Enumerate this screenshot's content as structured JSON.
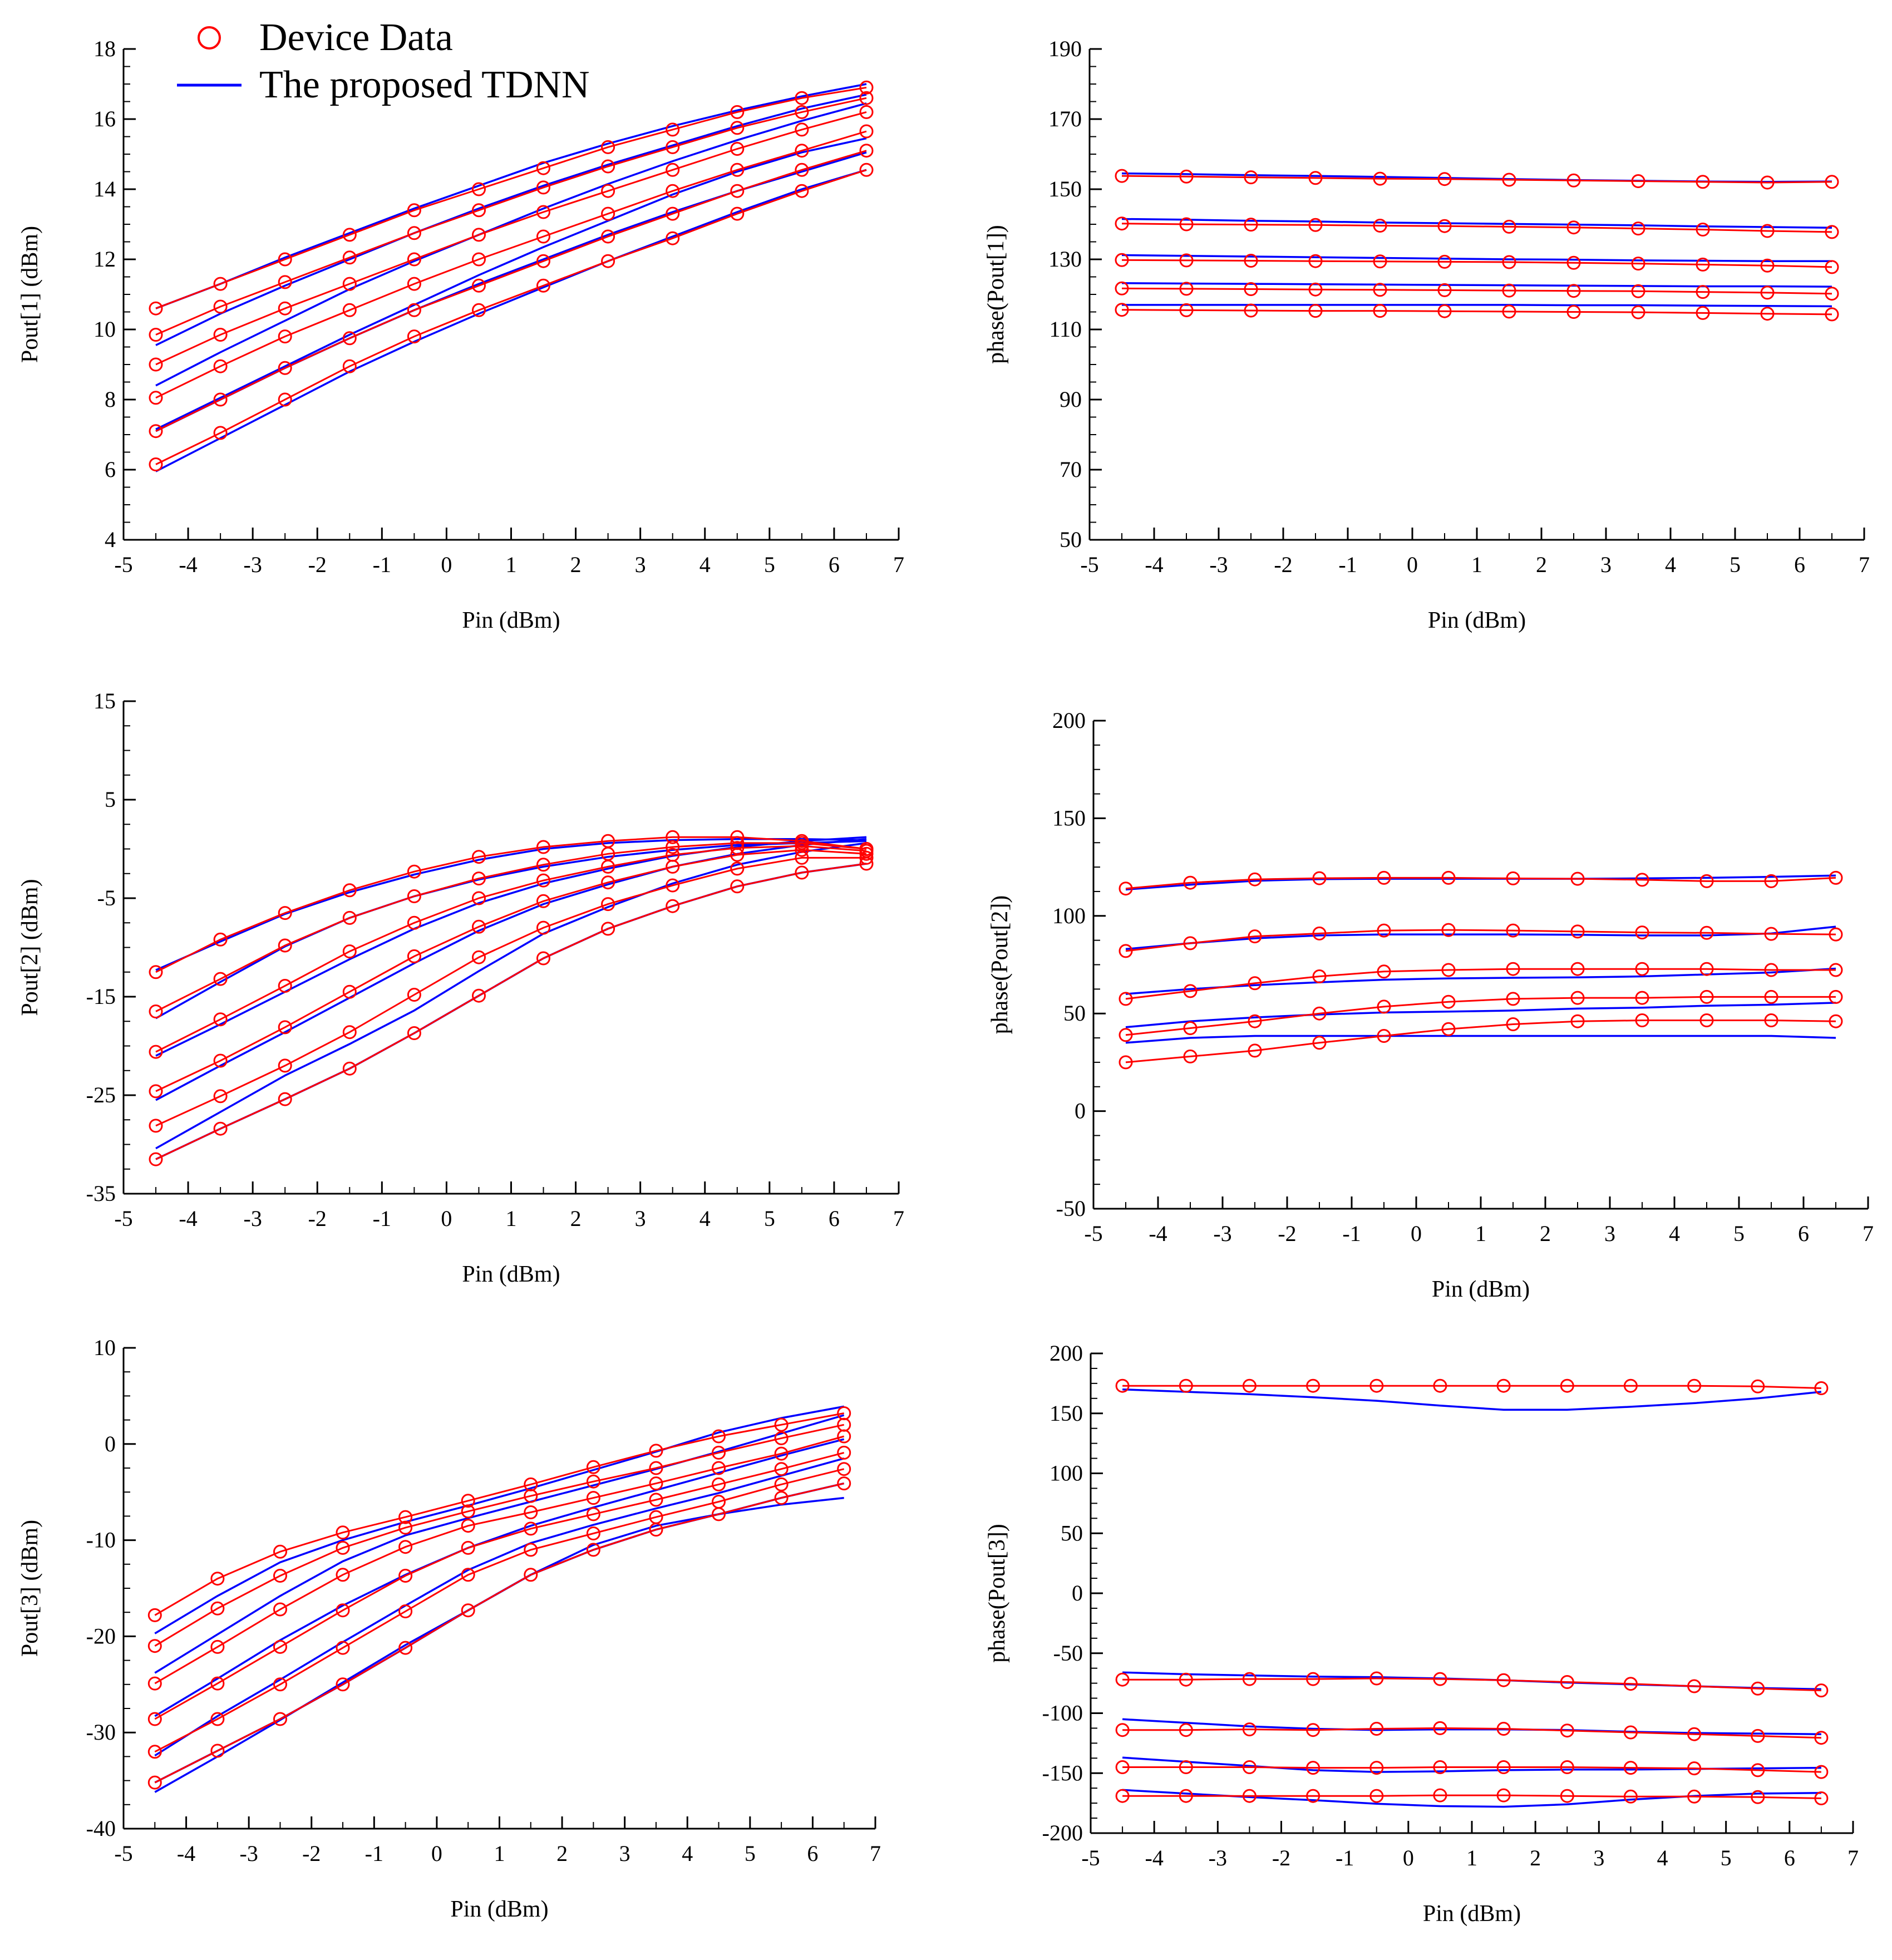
{
  "legend": {
    "entries": [
      {
        "label": "Device Data",
        "marker": "circle",
        "color": "#ff0000"
      },
      {
        "label": "The proposed TDNN",
        "marker": "line",
        "color": "#0000ff"
      }
    ]
  },
  "colors": {
    "device": "#ff0000",
    "model": "#0000ff",
    "axis": "#000000"
  },
  "chart_data": [
    {
      "type": "line",
      "xlabel": "Pin (dBm)",
      "ylabel": "Pout[1] (dBm)",
      "xlim": [
        -5,
        7
      ],
      "ylim": [
        4,
        18
      ],
      "xticks": [
        -5,
        -4,
        -3,
        -2,
        -1,
        0,
        1,
        2,
        3,
        4,
        5,
        6,
        7
      ],
      "yticks": [
        4,
        6,
        8,
        10,
        12,
        14,
        16,
        18
      ],
      "x": [
        -4.5,
        -3.5,
        -2.5,
        -1.5,
        -0.5,
        0.5,
        1.5,
        2.5,
        3.5,
        4.5,
        5.5,
        6.5
      ],
      "device_series": [
        [
          10.6,
          11.3,
          12.0,
          12.7,
          13.4,
          14.0,
          14.6,
          15.2,
          15.7,
          16.2,
          16.6,
          16.9
        ],
        [
          9.85,
          10.65,
          11.35,
          12.05,
          12.75,
          13.4,
          14.05,
          14.65,
          15.2,
          15.75,
          16.2,
          16.6
        ],
        [
          9.0,
          9.85,
          10.6,
          11.3,
          12.0,
          12.7,
          13.35,
          13.95,
          14.55,
          15.15,
          15.7,
          16.2
        ],
        [
          8.05,
          8.95,
          9.8,
          10.55,
          11.3,
          12.0,
          12.65,
          13.3,
          13.95,
          14.55,
          15.1,
          15.65
        ],
        [
          7.1,
          8.0,
          8.9,
          9.75,
          10.55,
          11.25,
          11.95,
          12.65,
          13.3,
          13.95,
          14.55,
          15.1
        ],
        [
          6.15,
          7.05,
          8.0,
          8.95,
          9.8,
          10.55,
          11.25,
          11.95,
          12.6,
          13.3,
          13.95,
          14.55
        ]
      ],
      "model_series": [
        [
          10.6,
          11.3,
          12.05,
          12.75,
          13.45,
          14.1,
          14.75,
          15.3,
          15.8,
          16.25,
          16.65,
          17.0
        ],
        [
          9.55,
          10.45,
          11.25,
          12.0,
          12.75,
          13.45,
          14.1,
          14.7,
          15.25,
          15.8,
          16.3,
          16.7
        ],
        [
          8.4,
          9.35,
          10.25,
          11.15,
          11.95,
          12.7,
          13.45,
          14.15,
          14.8,
          15.4,
          15.95,
          16.45
        ],
        [
          7.15,
          8.05,
          8.95,
          9.85,
          10.7,
          11.55,
          12.35,
          13.1,
          13.85,
          14.5,
          15.05,
          15.45
        ],
        [
          7.1,
          8.0,
          8.9,
          9.75,
          10.55,
          11.3,
          12.0,
          12.7,
          13.35,
          13.95,
          14.5,
          15.05
        ],
        [
          5.95,
          6.9,
          7.85,
          8.8,
          9.65,
          10.45,
          11.2,
          11.95,
          12.65,
          13.35,
          14.0,
          14.55
        ]
      ]
    },
    {
      "type": "line",
      "xlabel": "Pin (dBm)",
      "ylabel": "phase(Pout[1])",
      "xlim": [
        -5,
        7
      ],
      "ylim": [
        50,
        190
      ],
      "xticks": [
        -5,
        -4,
        -3,
        -2,
        -1,
        0,
        1,
        2,
        3,
        4,
        5,
        6,
        7
      ],
      "yticks": [
        50,
        70,
        90,
        110,
        130,
        150,
        170,
        190
      ],
      "x": [
        -4.5,
        -3.5,
        -2.5,
        -1.5,
        -0.5,
        0.5,
        1.5,
        2.5,
        3.5,
        4.5,
        5.5,
        6.5
      ],
      "device_series": [
        [
          153.8,
          153.6,
          153.4,
          153.2,
          153.0,
          152.9,
          152.7,
          152.5,
          152.3,
          152.1,
          151.9,
          152.1
        ],
        [
          140.2,
          140.0,
          139.9,
          139.8,
          139.6,
          139.5,
          139.3,
          139.1,
          138.8,
          138.5,
          138.1,
          137.8
        ],
        [
          129.8,
          129.7,
          129.6,
          129.5,
          129.4,
          129.3,
          129.2,
          129.0,
          128.8,
          128.5,
          128.2,
          127.8
        ],
        [
          121.7,
          121.6,
          121.5,
          121.4,
          121.3,
          121.2,
          121.1,
          121.0,
          120.9,
          120.7,
          120.5,
          120.2
        ],
        [
          115.6,
          115.5,
          115.4,
          115.3,
          115.3,
          115.2,
          115.1,
          115.0,
          114.9,
          114.7,
          114.5,
          114.3
        ]
      ],
      "model_series": [
        [
          154.5,
          154.3,
          154.0,
          153.8,
          153.5,
          153.2,
          152.9,
          152.6,
          152.4,
          152.2,
          152.1,
          152.2
        ],
        [
          141.5,
          141.3,
          141.0,
          140.8,
          140.5,
          140.3,
          140.1,
          139.9,
          139.7,
          139.4,
          139.2,
          139.0
        ],
        [
          131.2,
          131.0,
          130.8,
          130.6,
          130.4,
          130.2,
          130.0,
          129.9,
          129.7,
          129.6,
          129.5,
          129.5
        ],
        [
          123.2,
          123.1,
          123.0,
          122.9,
          122.8,
          122.7,
          122.6,
          122.5,
          122.4,
          122.3,
          122.3,
          122.2
        ],
        [
          117.0,
          117.0,
          117.0,
          117.0,
          117.0,
          117.0,
          117.0,
          116.9,
          116.9,
          116.8,
          116.7,
          116.6
        ]
      ]
    },
    {
      "type": "line",
      "xlabel": "Pin (dBm)",
      "ylabel": "Pout[2] (dBm)",
      "xlim": [
        -5,
        7
      ],
      "ylim": [
        -35,
        15
      ],
      "xticks": [
        -5,
        -4,
        -3,
        -2,
        -1,
        0,
        1,
        2,
        3,
        4,
        5,
        6,
        7
      ],
      "yticks": [
        -35,
        -25,
        -15,
        -5,
        5,
        15
      ],
      "x": [
        -4.5,
        -3.5,
        -2.5,
        -1.5,
        -0.5,
        0.5,
        1.5,
        2.5,
        3.5,
        4.5,
        5.5,
        6.5
      ],
      "device_series": [
        [
          -12.5,
          -9.2,
          -6.5,
          -4.2,
          -2.3,
          -0.8,
          0.2,
          0.8,
          1.2,
          1.2,
          0.8,
          0.0
        ],
        [
          -16.5,
          -13.2,
          -9.8,
          -7.0,
          -4.8,
          -3.0,
          -1.6,
          -0.5,
          0.2,
          0.6,
          0.6,
          0.0
        ],
        [
          -20.6,
          -17.3,
          -13.9,
          -10.4,
          -7.5,
          -5.0,
          -3.2,
          -1.8,
          -0.6,
          0.1,
          0.3,
          -0.2
        ],
        [
          -24.6,
          -21.5,
          -18.1,
          -14.5,
          -10.9,
          -7.9,
          -5.3,
          -3.4,
          -1.8,
          -0.6,
          -0.1,
          -0.5
        ],
        [
          -28.1,
          -25.1,
          -22.0,
          -18.6,
          -14.8,
          -11.0,
          -8.0,
          -5.6,
          -3.7,
          -2.0,
          -0.9,
          -0.9
        ],
        [
          -31.5,
          -28.4,
          -25.4,
          -22.3,
          -18.7,
          -14.9,
          -11.1,
          -8.1,
          -5.8,
          -3.8,
          -2.4,
          -1.5
        ]
      ],
      "model_series": [
        [
          -12.3,
          -9.4,
          -6.6,
          -4.4,
          -2.6,
          -1.1,
          0.0,
          0.6,
          0.9,
          1.0,
          1.0,
          0.9
        ],
        [
          -17.2,
          -13.5,
          -9.9,
          -7.0,
          -4.8,
          -3.1,
          -1.8,
          -0.8,
          -0.1,
          0.4,
          0.6,
          0.8
        ],
        [
          -21.0,
          -17.8,
          -14.5,
          -11.2,
          -8.1,
          -5.5,
          -3.5,
          -2.0,
          -0.7,
          0.2,
          0.8,
          1.2
        ],
        [
          -25.5,
          -22.0,
          -18.6,
          -15.1,
          -11.6,
          -8.3,
          -5.6,
          -3.6,
          -1.8,
          -0.5,
          0.4,
          1.0
        ],
        [
          -30.4,
          -26.7,
          -23.0,
          -19.8,
          -16.4,
          -12.4,
          -8.6,
          -5.9,
          -3.5,
          -1.6,
          -0.3,
          0.6
        ],
        [
          -31.5,
          -28.4,
          -25.4,
          -22.3,
          -18.7,
          -14.9,
          -11.1,
          -8.1,
          -5.8,
          -3.8,
          -2.4,
          -1.5
        ]
      ]
    },
    {
      "type": "line",
      "xlabel": "Pin (dBm)",
      "ylabel": "phase(Pout[2])",
      "xlim": [
        -5,
        7
      ],
      "ylim": [
        -50,
        200
      ],
      "xticks": [
        -5,
        -4,
        -3,
        -2,
        -1,
        0,
        1,
        2,
        3,
        4,
        5,
        6,
        7
      ],
      "yticks": [
        -50,
        0,
        50,
        100,
        150,
        200
      ],
      "x": [
        -4.5,
        -3.5,
        -2.5,
        -1.5,
        -0.5,
        0.5,
        1.5,
        2.5,
        3.5,
        4.5,
        5.5,
        6.5
      ],
      "device_series": [
        [
          114.0,
          117.0,
          118.7,
          119.3,
          119.5,
          119.5,
          119.2,
          119.0,
          118.5,
          117.8,
          117.8,
          119.5
        ],
        [
          82.0,
          86.0,
          89.5,
          91.0,
          92.5,
          92.8,
          92.5,
          92.0,
          91.5,
          91.3,
          90.8,
          90.5
        ],
        [
          57.5,
          61.5,
          65.5,
          69.0,
          71.5,
          72.3,
          72.8,
          72.8,
          72.8,
          72.8,
          72.3,
          72.3
        ],
        [
          39.0,
          42.5,
          46.0,
          50.0,
          53.5,
          56.0,
          57.5,
          58.0,
          58.0,
          58.5,
          58.5,
          58.5
        ],
        [
          25.0,
          28.0,
          31.0,
          35.0,
          38.5,
          42.0,
          44.5,
          46.0,
          46.5,
          46.5,
          46.5,
          46.0
        ]
      ],
      "model_series": [
        [
          113.5,
          116.0,
          118.0,
          118.8,
          119.0,
          119.0,
          119.0,
          119.0,
          119.2,
          119.5,
          120.0,
          120.7
        ],
        [
          83.0,
          86.0,
          88.5,
          90.0,
          90.5,
          90.5,
          90.5,
          90.3,
          90.0,
          90.0,
          91.0,
          94.5
        ],
        [
          60.0,
          62.5,
          64.5,
          66.0,
          67.3,
          68.0,
          68.3,
          68.5,
          69.0,
          70.0,
          71.0,
          73.0
        ],
        [
          43.0,
          46.0,
          48.0,
          49.5,
          50.5,
          51.0,
          51.5,
          52.5,
          53.0,
          54.0,
          54.5,
          55.5
        ],
        [
          35.0,
          37.5,
          38.5,
          38.5,
          38.5,
          38.5,
          38.5,
          38.5,
          38.5,
          38.5,
          38.5,
          37.5
        ]
      ]
    },
    {
      "type": "line",
      "xlabel": "Pin (dBm)",
      "ylabel": "Pout[3] (dBm)",
      "xlim": [
        -5,
        7
      ],
      "ylim": [
        -40,
        10
      ],
      "xticks": [
        -5,
        -4,
        -3,
        -2,
        -1,
        0,
        1,
        2,
        3,
        4,
        5,
        6,
        7
      ],
      "yticks": [
        -40,
        -30,
        -20,
        -10,
        0,
        10
      ],
      "x": [
        -4.5,
        -3.5,
        -2.5,
        -1.5,
        -0.5,
        0.5,
        1.5,
        2.5,
        3.5,
        4.5,
        5.5,
        6.5
      ],
      "device_series": [
        [
          -17.8,
          -14.0,
          -11.2,
          -9.2,
          -7.6,
          -5.9,
          -4.2,
          -2.4,
          -0.7,
          0.8,
          2.0,
          3.2
        ],
        [
          -21.0,
          -17.1,
          -13.7,
          -10.8,
          -8.7,
          -7.0,
          -5.4,
          -3.9,
          -2.5,
          -0.9,
          0.6,
          2.0
        ],
        [
          -24.9,
          -21.1,
          -17.2,
          -13.6,
          -10.7,
          -8.5,
          -7.1,
          -5.6,
          -4.1,
          -2.5,
          -1.0,
          0.8
        ],
        [
          -28.6,
          -24.9,
          -21.1,
          -17.3,
          -13.7,
          -10.8,
          -8.8,
          -7.3,
          -5.8,
          -4.2,
          -2.6,
          -0.9
        ],
        [
          -32.0,
          -28.6,
          -25.0,
          -21.2,
          -17.4,
          -13.6,
          -11.0,
          -9.3,
          -7.6,
          -6.0,
          -4.2,
          -2.6
        ],
        [
          -35.2,
          -31.9,
          -28.6,
          -25.0,
          -21.2,
          -17.3,
          -13.6,
          -11.0,
          -8.9,
          -7.3,
          -5.6,
          -4.1
        ]
      ],
      "model_series": [
        [
          -19.7,
          -15.8,
          -12.3,
          -10.0,
          -8.1,
          -6.4,
          -4.6,
          -2.7,
          -0.8,
          1.2,
          2.7,
          3.9
        ],
        [
          -23.8,
          -19.8,
          -15.8,
          -12.2,
          -9.5,
          -7.7,
          -6.0,
          -4.3,
          -2.6,
          -0.8,
          1.1,
          3.0
        ],
        [
          -28.3,
          -24.4,
          -20.4,
          -16.8,
          -13.6,
          -10.8,
          -8.5,
          -6.6,
          -4.8,
          -3.0,
          -1.2,
          0.5
        ],
        [
          -32.4,
          -28.3,
          -24.5,
          -20.6,
          -16.8,
          -13.1,
          -10.3,
          -8.4,
          -6.7,
          -5.1,
          -3.3,
          -1.5
        ],
        [
          -36.2,
          -32.5,
          -28.7,
          -24.8,
          -20.9,
          -17.3,
          -13.6,
          -10.5,
          -8.5,
          -7.3,
          -6.3,
          -5.6
        ],
        [
          -35.2,
          -31.9,
          -28.6,
          -25.0,
          -21.2,
          -17.3,
          -13.6,
          -11.0,
          -8.9,
          -7.3,
          -5.6,
          -4.1
        ]
      ]
    },
    {
      "type": "line",
      "xlabel": "Pin (dBm)",
      "ylabel": "phase(Pout[3])",
      "xlim": [
        -5,
        7
      ],
      "ylim": [
        -200,
        200
      ],
      "xticks": [
        -5,
        -4,
        -3,
        -2,
        -1,
        0,
        1,
        2,
        3,
        4,
        5,
        6,
        7
      ],
      "yticks": [
        -200,
        -150,
        -100,
        -50,
        0,
        50,
        100,
        150,
        200
      ],
      "x": [
        -4.5,
        -3.5,
        -2.5,
        -1.5,
        -0.5,
        0.5,
        1.5,
        2.5,
        3.5,
        4.5,
        5.5,
        6.5
      ],
      "device_series": [
        [
          173.0,
          173.0,
          173.0,
          173.0,
          173.0,
          173.0,
          173.0,
          173.0,
          173.0,
          173.0,
          172.5,
          171.0
        ],
        [
          -72.0,
          -72.0,
          -71.5,
          -71.5,
          -71.0,
          -71.5,
          -72.5,
          -74.0,
          -75.5,
          -77.5,
          -79.5,
          -81.0
        ],
        [
          -114.0,
          -114.0,
          -113.5,
          -114.0,
          -113.0,
          -112.5,
          -113.0,
          -114.5,
          -116.0,
          -117.5,
          -119.0,
          -120.5
        ],
        [
          -145.0,
          -145.0,
          -145.0,
          -145.5,
          -145.5,
          -145.0,
          -145.0,
          -145.0,
          -145.5,
          -146.0,
          -147.5,
          -149.0
        ],
        [
          -169.0,
          -169.0,
          -169.0,
          -169.0,
          -169.0,
          -168.5,
          -168.5,
          -169.0,
          -169.5,
          -169.5,
          -170.0,
          -171.0
        ]
      ],
      "model_series": [
        [
          170.0,
          168.0,
          166.0,
          163.5,
          160.5,
          156.5,
          153.0,
          153.0,
          155.5,
          158.5,
          162.5,
          168.0
        ],
        [
          -66.0,
          -67.5,
          -68.5,
          -69.5,
          -70.0,
          -71.0,
          -72.5,
          -74.5,
          -76.0,
          -77.5,
          -79.0,
          -80.0
        ],
        [
          -105.0,
          -108.0,
          -111.0,
          -113.0,
          -114.0,
          -113.5,
          -113.5,
          -114.0,
          -115.5,
          -116.5,
          -117.0,
          -117.5
        ],
        [
          -137.0,
          -140.5,
          -144.0,
          -147.5,
          -149.0,
          -148.5,
          -147.5,
          -147.0,
          -147.0,
          -146.5,
          -146.0,
          -145.5
        ],
        [
          -164.0,
          -167.0,
          -170.0,
          -172.5,
          -175.5,
          -177.5,
          -178.0,
          -176.0,
          -172.0,
          -169.0,
          -167.0,
          -166.5
        ]
      ]
    }
  ]
}
